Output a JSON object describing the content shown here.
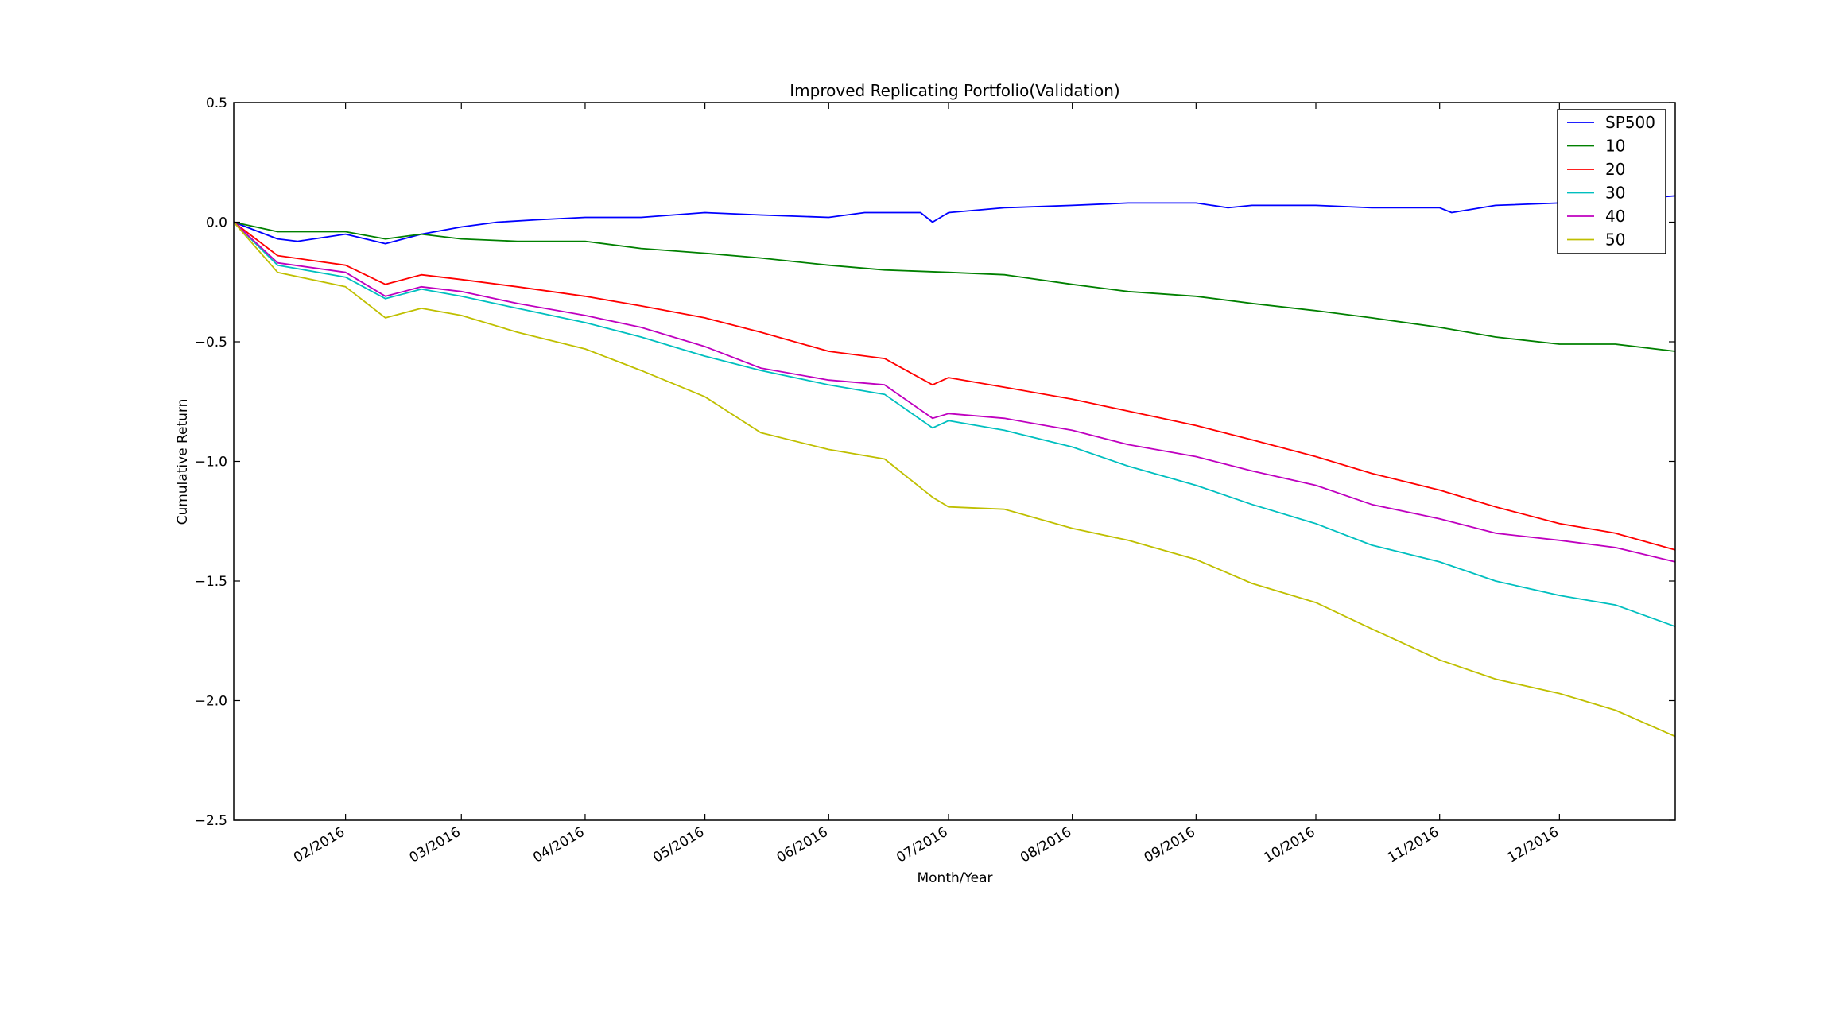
{
  "chart_data": {
    "type": "line",
    "title": "Improved Replicating Portfolio(Validation)",
    "xlabel": "Month/Year",
    "ylabel": "Cumulative Return",
    "xlim": [
      "2016-01-04",
      "2016-12-30"
    ],
    "ylim": [
      -2.5,
      0.5
    ],
    "yticks": [
      0.5,
      0.0,
      -0.5,
      -1.0,
      -1.5,
      -2.0,
      -2.5
    ],
    "ytick_labels": [
      "0.5",
      "0.0",
      "−0.5",
      "−1.0",
      "−1.5",
      "−2.0",
      "−2.5"
    ],
    "xticks": [
      "2016-02-01",
      "2016-03-01",
      "2016-04-01",
      "2016-05-01",
      "2016-06-01",
      "2016-07-01",
      "2016-08-01",
      "2016-09-01",
      "2016-10-01",
      "2016-11-01",
      "2016-12-01"
    ],
    "xtick_labels": [
      "02/2016",
      "03/2016",
      "04/2016",
      "05/2016",
      "06/2016",
      "07/2016",
      "08/2016",
      "09/2016",
      "10/2016",
      "11/2016",
      "12/2016"
    ],
    "legend": "top-right",
    "grid": false,
    "series": [
      {
        "name": "SP500",
        "color": "#0000ff",
        "x": [
          "2016-01-04",
          "2016-01-15",
          "2016-01-20",
          "2016-02-01",
          "2016-02-11",
          "2016-02-20",
          "2016-03-01",
          "2016-03-10",
          "2016-03-20",
          "2016-04-01",
          "2016-04-15",
          "2016-05-01",
          "2016-05-15",
          "2016-06-01",
          "2016-06-10",
          "2016-06-24",
          "2016-06-27",
          "2016-07-01",
          "2016-07-15",
          "2016-08-01",
          "2016-08-15",
          "2016-09-01",
          "2016-09-09",
          "2016-09-15",
          "2016-10-01",
          "2016-10-15",
          "2016-11-01",
          "2016-11-04",
          "2016-11-15",
          "2016-12-01",
          "2016-12-15",
          "2016-12-30"
        ],
        "y": [
          0.0,
          -0.07,
          -0.08,
          -0.05,
          -0.09,
          -0.05,
          -0.02,
          0.0,
          0.01,
          0.02,
          0.02,
          0.04,
          0.03,
          0.02,
          0.04,
          0.04,
          0.0,
          0.04,
          0.06,
          0.07,
          0.08,
          0.08,
          0.06,
          0.07,
          0.07,
          0.06,
          0.06,
          0.04,
          0.07,
          0.08,
          0.09,
          0.11
        ]
      },
      {
        "name": "10",
        "color": "#008000",
        "x": [
          "2016-01-04",
          "2016-01-15",
          "2016-02-01",
          "2016-02-11",
          "2016-02-20",
          "2016-03-01",
          "2016-03-15",
          "2016-04-01",
          "2016-04-15",
          "2016-05-01",
          "2016-05-15",
          "2016-06-01",
          "2016-06-15",
          "2016-07-01",
          "2016-07-15",
          "2016-08-01",
          "2016-08-15",
          "2016-09-01",
          "2016-09-15",
          "2016-10-01",
          "2016-10-15",
          "2016-11-01",
          "2016-11-15",
          "2016-12-01",
          "2016-12-15",
          "2016-12-30"
        ],
        "y": [
          0.0,
          -0.04,
          -0.04,
          -0.07,
          -0.05,
          -0.07,
          -0.08,
          -0.08,
          -0.11,
          -0.13,
          -0.15,
          -0.18,
          -0.2,
          -0.21,
          -0.22,
          -0.26,
          -0.29,
          -0.31,
          -0.34,
          -0.37,
          -0.4,
          -0.44,
          -0.48,
          -0.51,
          -0.51,
          -0.54
        ]
      },
      {
        "name": "20",
        "color": "#ff0000",
        "x": [
          "2016-01-04",
          "2016-01-15",
          "2016-02-01",
          "2016-02-11",
          "2016-02-20",
          "2016-03-01",
          "2016-03-15",
          "2016-04-01",
          "2016-04-15",
          "2016-05-01",
          "2016-05-15",
          "2016-06-01",
          "2016-06-15",
          "2016-06-27",
          "2016-07-01",
          "2016-07-15",
          "2016-08-01",
          "2016-08-15",
          "2016-09-01",
          "2016-09-15",
          "2016-10-01",
          "2016-10-15",
          "2016-11-01",
          "2016-11-15",
          "2016-12-01",
          "2016-12-15",
          "2016-12-30"
        ],
        "y": [
          0.0,
          -0.14,
          -0.18,
          -0.26,
          -0.22,
          -0.24,
          -0.27,
          -0.31,
          -0.35,
          -0.4,
          -0.46,
          -0.54,
          -0.57,
          -0.68,
          -0.65,
          -0.69,
          -0.74,
          -0.79,
          -0.85,
          -0.91,
          -0.98,
          -1.05,
          -1.12,
          -1.19,
          -1.26,
          -1.3,
          -1.37
        ]
      },
      {
        "name": "30",
        "color": "#00bfbf",
        "x": [
          "2016-01-04",
          "2016-01-15",
          "2016-02-01",
          "2016-02-11",
          "2016-02-20",
          "2016-03-01",
          "2016-03-15",
          "2016-04-01",
          "2016-04-15",
          "2016-05-01",
          "2016-05-15",
          "2016-06-01",
          "2016-06-15",
          "2016-06-27",
          "2016-07-01",
          "2016-07-15",
          "2016-08-01",
          "2016-08-15",
          "2016-09-01",
          "2016-09-15",
          "2016-10-01",
          "2016-10-15",
          "2016-11-01",
          "2016-11-15",
          "2016-12-01",
          "2016-12-15",
          "2016-12-30"
        ],
        "y": [
          0.0,
          -0.18,
          -0.23,
          -0.32,
          -0.28,
          -0.31,
          -0.36,
          -0.42,
          -0.48,
          -0.56,
          -0.62,
          -0.68,
          -0.72,
          -0.86,
          -0.83,
          -0.87,
          -0.94,
          -1.02,
          -1.1,
          -1.18,
          -1.26,
          -1.35,
          -1.42,
          -1.5,
          -1.56,
          -1.6,
          -1.69
        ]
      },
      {
        "name": "40",
        "color": "#bf00bf",
        "x": [
          "2016-01-04",
          "2016-01-15",
          "2016-02-01",
          "2016-02-11",
          "2016-02-20",
          "2016-03-01",
          "2016-03-15",
          "2016-04-01",
          "2016-04-15",
          "2016-05-01",
          "2016-05-15",
          "2016-06-01",
          "2016-06-15",
          "2016-06-27",
          "2016-07-01",
          "2016-07-15",
          "2016-08-01",
          "2016-08-15",
          "2016-09-01",
          "2016-09-15",
          "2016-10-01",
          "2016-10-15",
          "2016-11-01",
          "2016-11-15",
          "2016-12-01",
          "2016-12-15",
          "2016-12-30"
        ],
        "y": [
          0.0,
          -0.17,
          -0.21,
          -0.31,
          -0.27,
          -0.29,
          -0.34,
          -0.39,
          -0.44,
          -0.52,
          -0.61,
          -0.66,
          -0.68,
          -0.82,
          -0.8,
          -0.82,
          -0.87,
          -0.93,
          -0.98,
          -1.04,
          -1.1,
          -1.18,
          -1.24,
          -1.3,
          -1.33,
          -1.36,
          -1.42
        ]
      },
      {
        "name": "50",
        "color": "#bfbf00",
        "x": [
          "2016-01-04",
          "2016-01-15",
          "2016-02-01",
          "2016-02-11",
          "2016-02-20",
          "2016-03-01",
          "2016-03-15",
          "2016-04-01",
          "2016-04-15",
          "2016-05-01",
          "2016-05-15",
          "2016-06-01",
          "2016-06-15",
          "2016-06-27",
          "2016-07-01",
          "2016-07-15",
          "2016-08-01",
          "2016-08-15",
          "2016-09-01",
          "2016-09-15",
          "2016-10-01",
          "2016-10-15",
          "2016-11-01",
          "2016-11-15",
          "2016-12-01",
          "2016-12-15",
          "2016-12-30"
        ],
        "y": [
          0.0,
          -0.21,
          -0.27,
          -0.4,
          -0.36,
          -0.39,
          -0.46,
          -0.53,
          -0.62,
          -0.73,
          -0.88,
          -0.95,
          -0.99,
          -1.15,
          -1.19,
          -1.2,
          -1.28,
          -1.33,
          -1.41,
          -1.51,
          -1.59,
          -1.7,
          -1.83,
          -1.91,
          -1.97,
          -2.04,
          -2.15
        ]
      }
    ]
  }
}
